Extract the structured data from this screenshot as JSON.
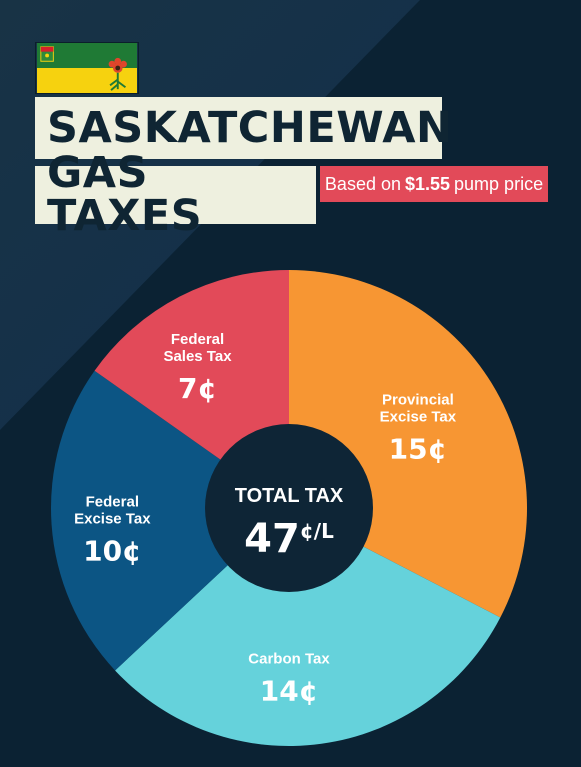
{
  "header": {
    "title_line1": "SASKATCHEWAN",
    "title_line2": "GAS TAXES",
    "subtitle_prefix": "Based on",
    "subtitle_price": "$1.55",
    "subtitle_suffix": "pump price"
  },
  "flag": {
    "name": "Saskatchewan flag",
    "colors": [
      "#1f7a35",
      "#f6d20f"
    ]
  },
  "colors": {
    "background": "#0d2535",
    "title_box": "#eef0df",
    "subtitle_box": "#e24a59",
    "center": "#0e2536"
  },
  "chart_data": {
    "type": "pie",
    "style": "donut",
    "title": "",
    "unit": "¢",
    "center_label": "TOTAL TAX",
    "center_value": "47",
    "center_unit": "¢/L",
    "slices": [
      {
        "label": "Provincial Excise Tax",
        "value": 15,
        "display": "15¢",
        "color": "#f79633"
      },
      {
        "label": "Carbon Tax",
        "value": 14,
        "display": "14¢",
        "color": "#65d2db"
      },
      {
        "label": "Federal Excise Tax",
        "value": 10,
        "display": "10¢",
        "color": "#0c5584"
      },
      {
        "label": "Federal Sales Tax",
        "value": 7,
        "display": "7¢",
        "color": "#e24a59"
      }
    ]
  }
}
